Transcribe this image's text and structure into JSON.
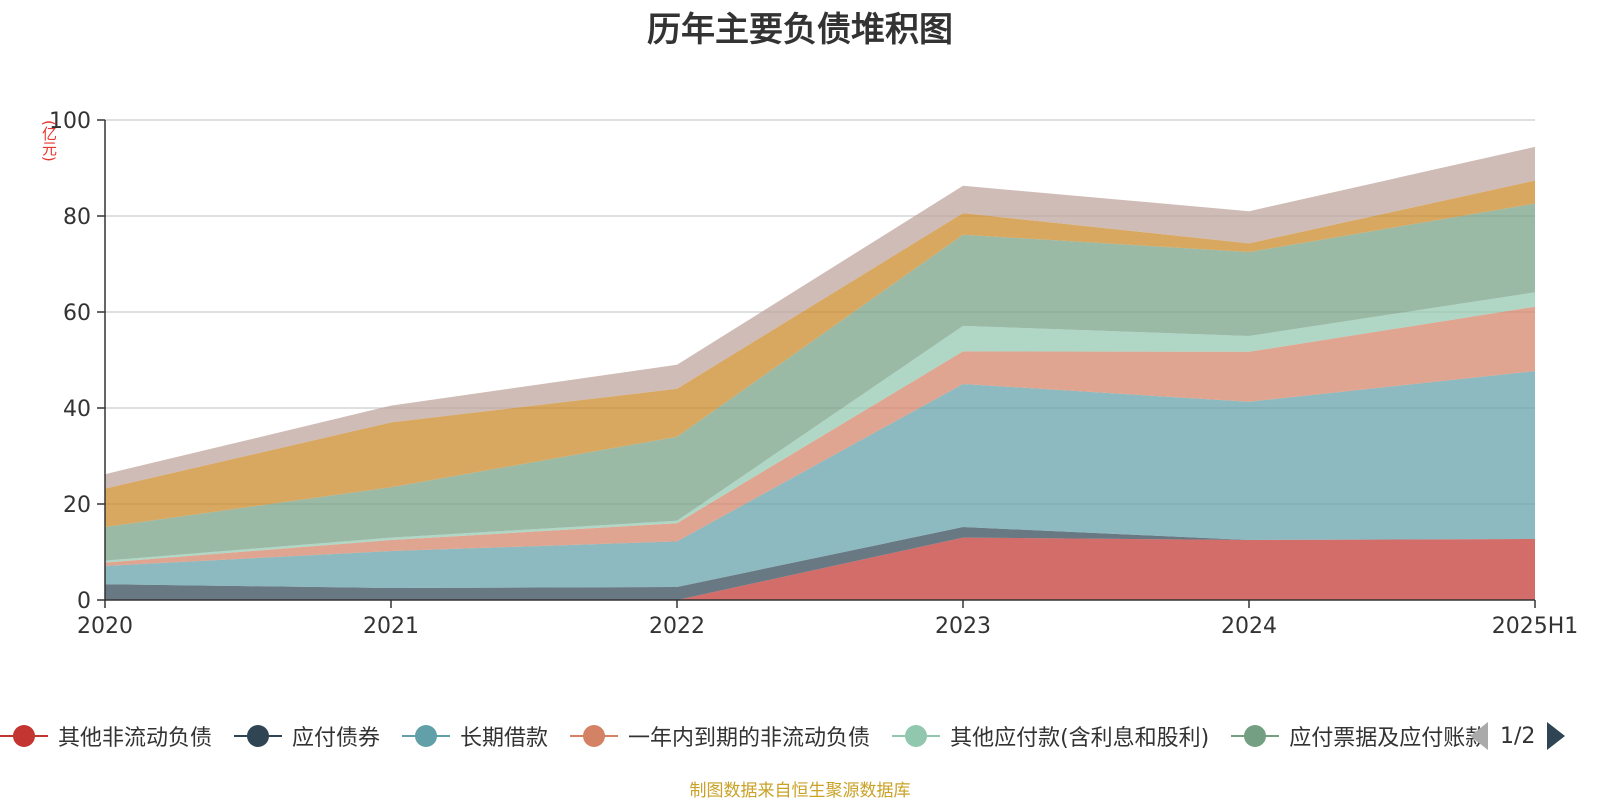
{
  "chart_data": {
    "type": "area",
    "stacked": true,
    "title": "历年主要负债堆积图",
    "unit_label": "(亿元)",
    "categories": [
      "2020",
      "2021",
      "2022",
      "2023",
      "2024",
      "2025H1"
    ],
    "ylim": [
      0,
      100
    ],
    "yticks": [
      0,
      20,
      40,
      60,
      80,
      100
    ],
    "grid": true,
    "legend_position": "bottom",
    "series": [
      {
        "name": "其他非流动负债",
        "color": "#c23531",
        "values": [
          0,
          0,
          0,
          13,
          12.5,
          12.7
        ]
      },
      {
        "name": "应付债券",
        "color": "#2f4554",
        "values": [
          3.3,
          2.5,
          2.7,
          2.2,
          0,
          0
        ]
      },
      {
        "name": "长期借款",
        "color": "#61a0a8",
        "values": [
          3.8,
          7.7,
          9.5,
          29.8,
          28.8,
          35
        ]
      },
      {
        "name": "一年内到期的非流动负债",
        "color": "#d48265",
        "values": [
          0.7,
          2.3,
          3.8,
          6.8,
          10.4,
          13.4
        ]
      },
      {
        "name": "其他应付款(含利息和股利)",
        "color": "#91c7ae",
        "values": [
          0.4,
          0.5,
          0.5,
          5.3,
          3.3,
          3
        ]
      },
      {
        "name": "应付票据及应付账款",
        "color": "#749f83",
        "values": [
          7,
          10.5,
          17.5,
          19,
          17.5,
          18.5
        ]
      },
      {
        "color": "#ca8622",
        "values": [
          8,
          13.5,
          10,
          4.5,
          1.8,
          4.8
        ]
      },
      {
        "color": "#bda29a",
        "values": [
          3,
          3.5,
          5,
          5.7,
          6.7,
          7
        ]
      }
    ]
  },
  "legend_visible": [
    {
      "name": "其他非流动负债",
      "color": "#c23531"
    },
    {
      "name": "应付债券",
      "color": "#2f4554"
    },
    {
      "name": "长期借款",
      "color": "#61a0a8"
    },
    {
      "name": "一年内到期的非流动负债",
      "color": "#d48265"
    },
    {
      "name": "其他应付款(含利息和股利)",
      "color": "#91c7ae"
    },
    {
      "name": "应付票据及应付账款",
      "color": "#749f83"
    }
  ],
  "pager": {
    "text": "1/2"
  },
  "source": "制图数据来自恒生聚源数据库"
}
